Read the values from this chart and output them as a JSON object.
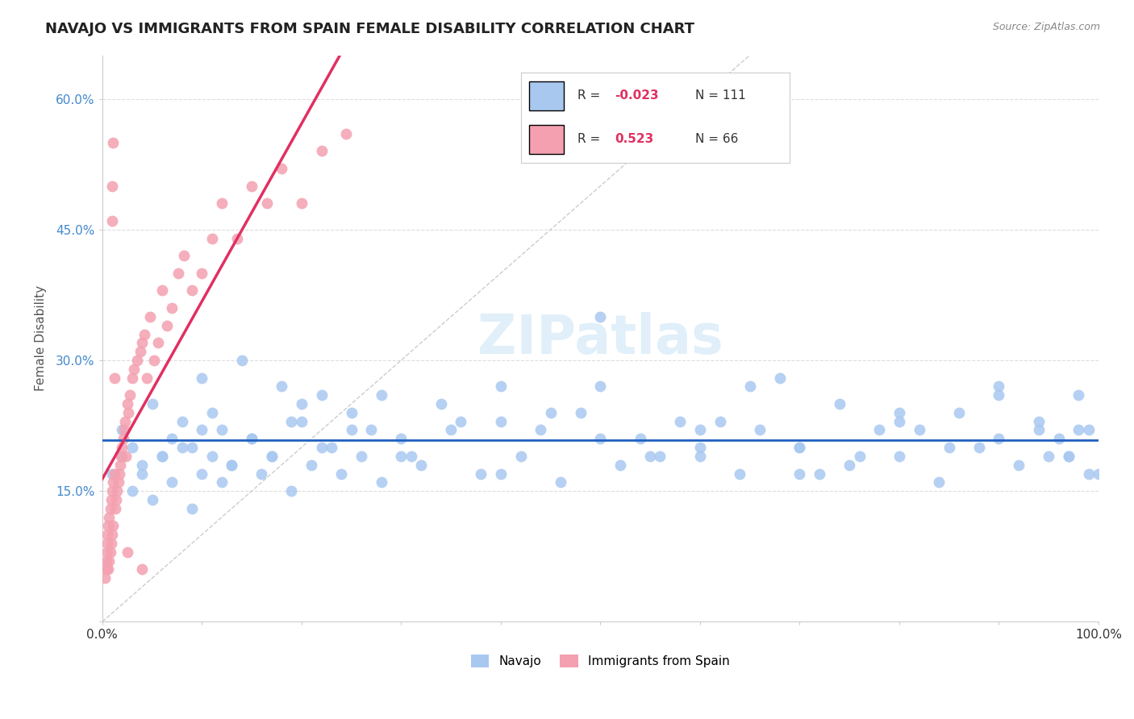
{
  "title": "NAVAJO VS IMMIGRANTS FROM SPAIN FEMALE DISABILITY CORRELATION CHART",
  "source": "Source: ZipAtlas.com",
  "ylabel": "Female Disability",
  "navajo_color": "#a8c8f0",
  "spain_color": "#f4a0b0",
  "navajo_line_color": "#2060c0",
  "spain_line_color": "#e03060",
  "background_color": "#ffffff",
  "navajo_R": -0.023,
  "navajo_N": 111,
  "spain_R": 0.523,
  "spain_N": 66,
  "navajo_points_x": [
    0.01,
    0.02,
    0.02,
    0.03,
    0.04,
    0.05,
    0.06,
    0.07,
    0.08,
    0.09,
    0.1,
    0.11,
    0.12,
    0.13,
    0.14,
    0.15,
    0.16,
    0.17,
    0.18,
    0.19,
    0.2,
    0.21,
    0.22,
    0.23,
    0.24,
    0.25,
    0.26,
    0.27,
    0.28,
    0.3,
    0.32,
    0.34,
    0.36,
    0.38,
    0.4,
    0.42,
    0.44,
    0.46,
    0.48,
    0.5,
    0.52,
    0.54,
    0.56,
    0.58,
    0.6,
    0.62,
    0.64,
    0.66,
    0.68,
    0.7,
    0.72,
    0.74,
    0.76,
    0.78,
    0.8,
    0.82,
    0.84,
    0.86,
    0.88,
    0.9,
    0.92,
    0.94,
    0.96,
    0.97,
    0.98,
    0.99,
    1.0,
    0.03,
    0.04,
    0.05,
    0.06,
    0.07,
    0.08,
    0.09,
    0.1,
    0.11,
    0.12,
    0.13,
    0.15,
    0.17,
    0.19,
    0.22,
    0.25,
    0.28,
    0.31,
    0.35,
    0.4,
    0.45,
    0.5,
    0.55,
    0.6,
    0.65,
    0.7,
    0.75,
    0.8,
    0.85,
    0.9,
    0.94,
    0.97,
    0.99,
    0.1,
    0.2,
    0.3,
    0.4,
    0.5,
    0.6,
    0.7,
    0.8,
    0.9,
    0.95,
    0.98
  ],
  "navajo_points_y": [
    0.17,
    0.19,
    0.22,
    0.2,
    0.17,
    0.25,
    0.19,
    0.21,
    0.23,
    0.2,
    0.17,
    0.24,
    0.16,
    0.18,
    0.3,
    0.21,
    0.17,
    0.19,
    0.27,
    0.15,
    0.23,
    0.18,
    0.26,
    0.2,
    0.17,
    0.24,
    0.19,
    0.22,
    0.16,
    0.21,
    0.18,
    0.25,
    0.23,
    0.17,
    0.27,
    0.19,
    0.22,
    0.16,
    0.24,
    0.35,
    0.18,
    0.21,
    0.19,
    0.23,
    0.19,
    0.23,
    0.17,
    0.22,
    0.28,
    0.2,
    0.17,
    0.25,
    0.19,
    0.22,
    0.19,
    0.22,
    0.16,
    0.24,
    0.2,
    0.27,
    0.18,
    0.23,
    0.21,
    0.19,
    0.26,
    0.22,
    0.17,
    0.15,
    0.18,
    0.14,
    0.19,
    0.16,
    0.2,
    0.13,
    0.28,
    0.19,
    0.22,
    0.18,
    0.21,
    0.19,
    0.23,
    0.2,
    0.22,
    0.26,
    0.19,
    0.22,
    0.17,
    0.24,
    0.21,
    0.19,
    0.22,
    0.27,
    0.2,
    0.18,
    0.23,
    0.2,
    0.26,
    0.22,
    0.19,
    0.17,
    0.22,
    0.25,
    0.19,
    0.23,
    0.27,
    0.2,
    0.17,
    0.24,
    0.21,
    0.19,
    0.22
  ],
  "spain_points_x": [
    0.003,
    0.004,
    0.004,
    0.005,
    0.005,
    0.005,
    0.006,
    0.006,
    0.007,
    0.007,
    0.008,
    0.008,
    0.009,
    0.009,
    0.01,
    0.01,
    0.011,
    0.011,
    0.012,
    0.013,
    0.014,
    0.015,
    0.016,
    0.017,
    0.018,
    0.019,
    0.02,
    0.021,
    0.022,
    0.023,
    0.024,
    0.025,
    0.026,
    0.028,
    0.03,
    0.032,
    0.035,
    0.038,
    0.04,
    0.042,
    0.045,
    0.048,
    0.052,
    0.056,
    0.06,
    0.065,
    0.07,
    0.076,
    0.082,
    0.09,
    0.1,
    0.11,
    0.12,
    0.135,
    0.15,
    0.165,
    0.18,
    0.2,
    0.22,
    0.245,
    0.01,
    0.01,
    0.011,
    0.012,
    0.025,
    0.04
  ],
  "spain_points_y": [
    0.05,
    0.06,
    0.07,
    0.08,
    0.09,
    0.1,
    0.06,
    0.11,
    0.07,
    0.12,
    0.08,
    0.13,
    0.09,
    0.14,
    0.1,
    0.15,
    0.11,
    0.16,
    0.17,
    0.13,
    0.14,
    0.15,
    0.16,
    0.17,
    0.18,
    0.19,
    0.2,
    0.21,
    0.22,
    0.23,
    0.19,
    0.25,
    0.24,
    0.26,
    0.28,
    0.29,
    0.3,
    0.31,
    0.32,
    0.33,
    0.28,
    0.35,
    0.3,
    0.32,
    0.38,
    0.34,
    0.36,
    0.4,
    0.42,
    0.38,
    0.4,
    0.44,
    0.48,
    0.44,
    0.5,
    0.48,
    0.52,
    0.48,
    0.54,
    0.56,
    0.46,
    0.5,
    0.55,
    0.28,
    0.08,
    0.06
  ]
}
